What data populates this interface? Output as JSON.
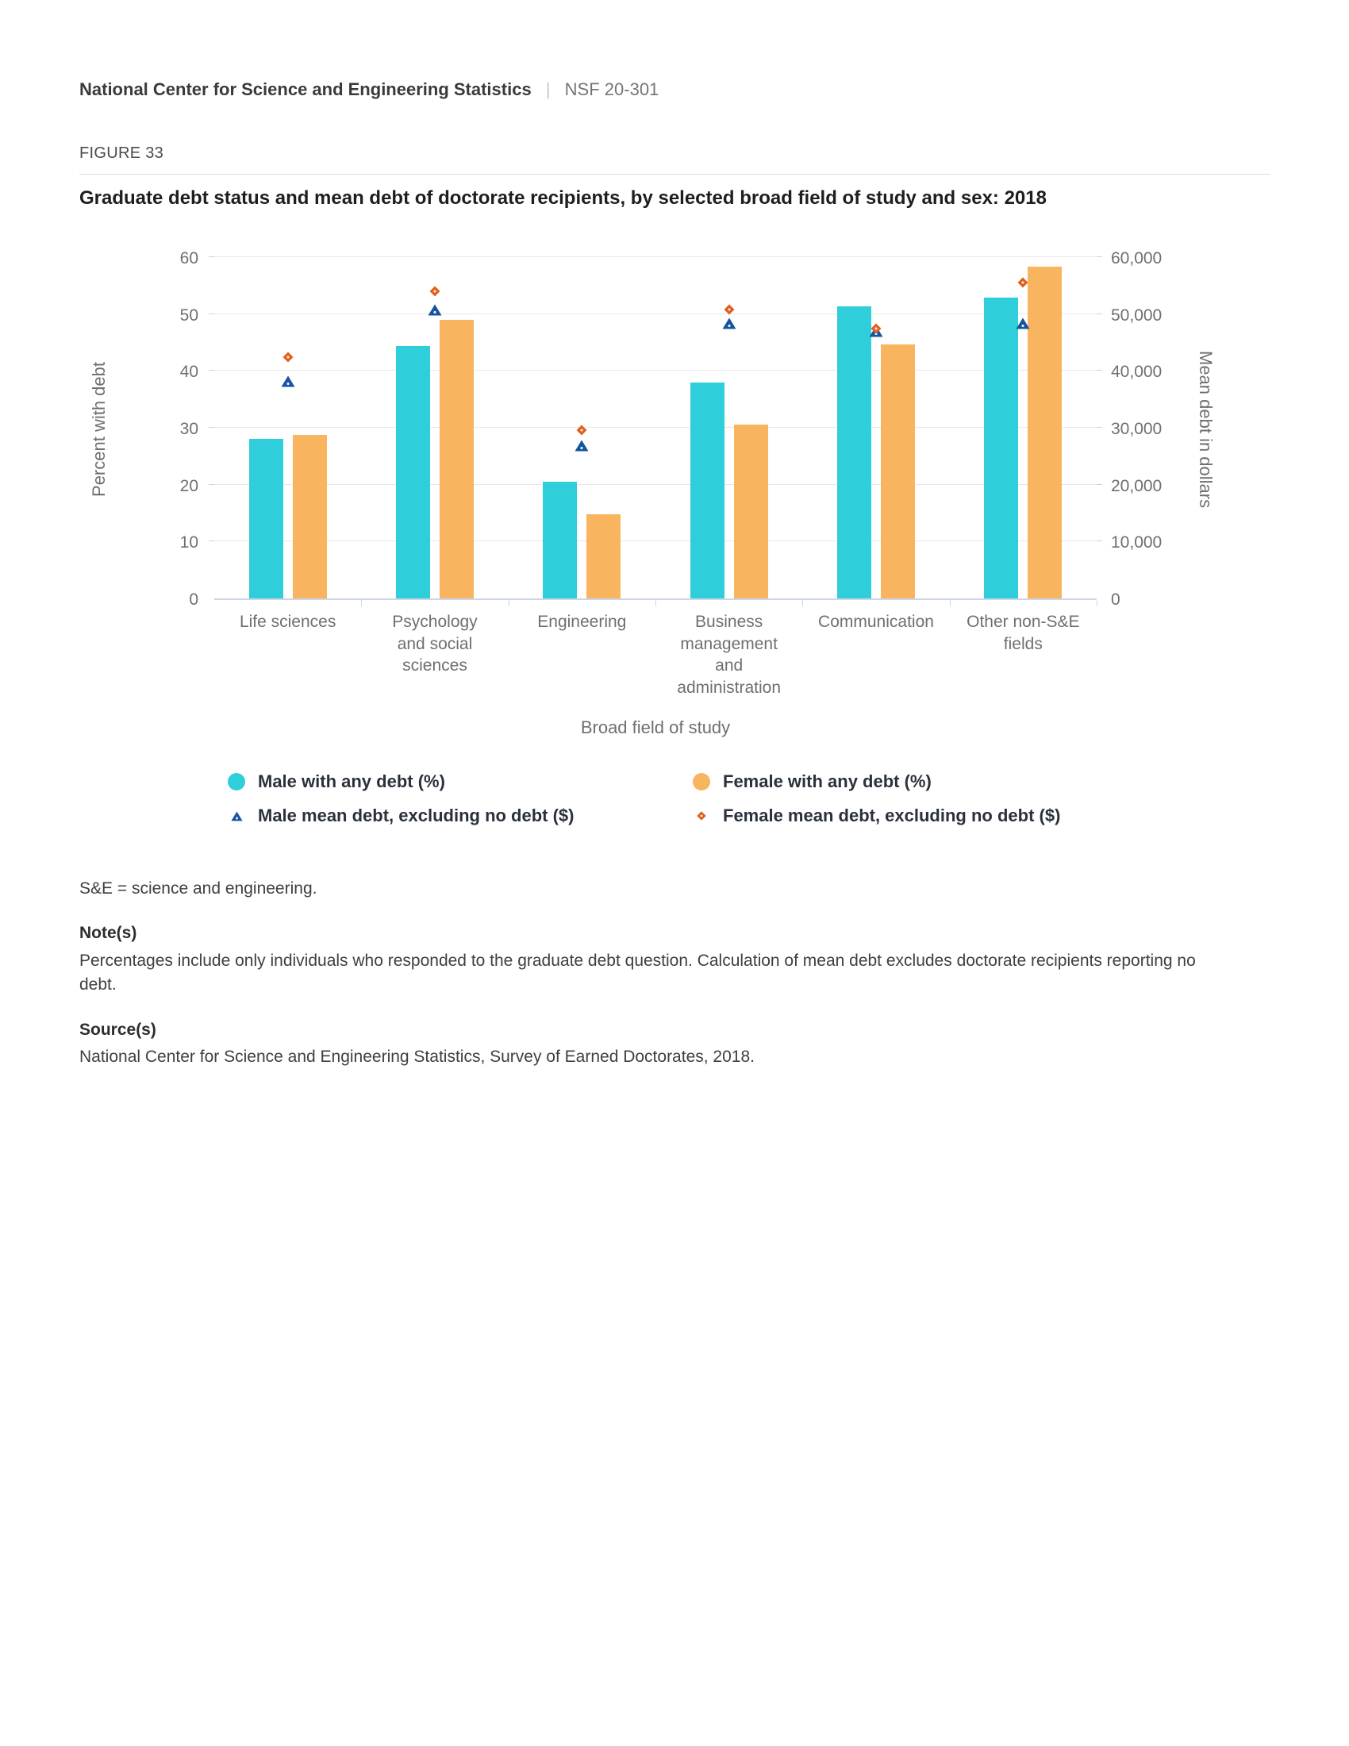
{
  "header": {
    "org": "National Center for Science and Engineering Statistics",
    "separator": "|",
    "report_number": "NSF 20-301"
  },
  "figure": {
    "label": "FIGURE 33",
    "title": "Graduate debt status and mean debt of doctorate recipients, by selected broad field of study and sex: 2018"
  },
  "chart_data": {
    "type": "bar",
    "title": "Graduate debt status and mean debt of doctorate recipients, by selected broad field of study and sex: 2018",
    "xlabel": "Broad field of study",
    "grid": true,
    "legend_position": "bottom",
    "categories": [
      "Life sciences",
      "Psychology and social sciences",
      "Engineering",
      "Business management and administration",
      "Communication",
      "Other non-S&E fields"
    ],
    "category_lines": [
      [
        "Life sciences"
      ],
      [
        "Psychology",
        "and social",
        "sciences"
      ],
      [
        "Engineering"
      ],
      [
        "Business",
        "management",
        "and",
        "administration"
      ],
      [
        "Communication"
      ],
      [
        "Other non-S&E",
        "fields"
      ]
    ],
    "series": [
      {
        "name": "Male with any debt (%)",
        "kind": "bar",
        "axis": "left",
        "color": "#2FCEDB",
        "values": [
          28.0,
          44.4,
          20.5,
          38.0,
          51.4,
          52.9
        ]
      },
      {
        "name": "Female with any debt (%)",
        "kind": "bar",
        "axis": "left",
        "color": "#F9B45F",
        "values": [
          28.8,
          49.0,
          14.8,
          30.6,
          44.6,
          58.3
        ]
      },
      {
        "name": "Male mean debt, excluding no debt ($)",
        "kind": "point-triangle",
        "axis": "right",
        "color": "#15549E",
        "values": [
          38100,
          50700,
          26900,
          48400,
          46900,
          48300
        ]
      },
      {
        "name": "Female mean debt, excluding no debt ($)",
        "kind": "point-diamond",
        "axis": "right",
        "color": "#E0611F",
        "values": [
          42400,
          54000,
          29600,
          50800,
          47400,
          55600
        ]
      }
    ],
    "left_axis": {
      "label": "Percent with debt",
      "tick_labels": [
        "0",
        "10",
        "20",
        "30",
        "40",
        "50",
        "60"
      ],
      "tick_values": [
        0,
        10,
        20,
        30,
        40,
        50,
        60
      ],
      "min": 0,
      "max": 60
    },
    "right_axis": {
      "label": "Mean debt in dollars",
      "tick_labels": [
        "0",
        "10,000",
        "20,000",
        "30,000",
        "40,000",
        "50,000",
        "60,000"
      ],
      "tick_values": [
        0,
        10000,
        20000,
        30000,
        40000,
        50000,
        60000
      ],
      "min": 0,
      "max": 60000
    }
  },
  "notes": {
    "abbreviation": "S&E = science and engineering.",
    "notes_label": "Note(s)",
    "notes_text": "Percentages include only individuals who responded to the graduate debt question. Calculation of mean debt excludes doctorate recipients reporting no debt.",
    "source_label": "Source(s)",
    "source_text": "National Center for Science and Engineering Statistics, Survey of Earned Doctorates, 2018."
  }
}
